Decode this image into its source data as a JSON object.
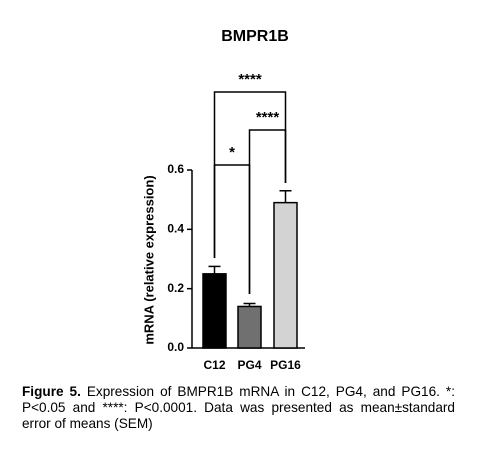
{
  "chart_data": {
    "type": "bar",
    "title": "BMPR1B",
    "y_label": "mRNA (relative expression)",
    "categories": [
      "C12",
      "PG4",
      "PG16"
    ],
    "values": [
      0.25,
      0.14,
      0.49
    ],
    "errors": [
      0.025,
      0.01,
      0.04
    ],
    "colors": [
      "#000000",
      "#707070",
      "#d3d3d3"
    ],
    "ylim": [
      0,
      0.6
    ],
    "yticks": [
      {
        "value": 0,
        "label": "0.0"
      },
      0.2,
      0.4,
      0.6
    ],
    "annotations": [
      "*",
      "****",
      "****"
    ]
  },
  "caption": {
    "label": "Figure 5.",
    "text": "Expression of BMPR1B mRNA in C12, PG4, and PG16. *: P<0.05 and ****: P<0.0001. Data was presented as mean±standard error of means (SEM)"
  }
}
